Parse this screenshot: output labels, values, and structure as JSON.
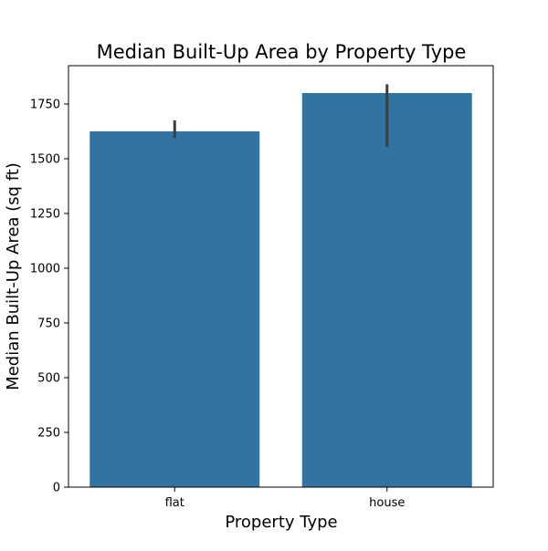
{
  "chart_data": {
    "type": "bar",
    "title": "Median Built-Up Area by Property Type",
    "xlabel": "Property Type",
    "ylabel": "Median Built-Up Area (sq ft)",
    "categories": [
      "flat",
      "house"
    ],
    "values": [
      1625,
      1800
    ],
    "error_bars": [
      {
        "low": 1595,
        "high": 1675
      },
      {
        "low": 1555,
        "high": 1840
      }
    ],
    "ylim": [
      0,
      1925
    ],
    "yticks": [
      0,
      250,
      500,
      750,
      1000,
      1250,
      1500,
      1750
    ],
    "grid": false,
    "legend": "none",
    "bar_color": "#3274a1",
    "errorbar_color": "#3d3d3d"
  }
}
